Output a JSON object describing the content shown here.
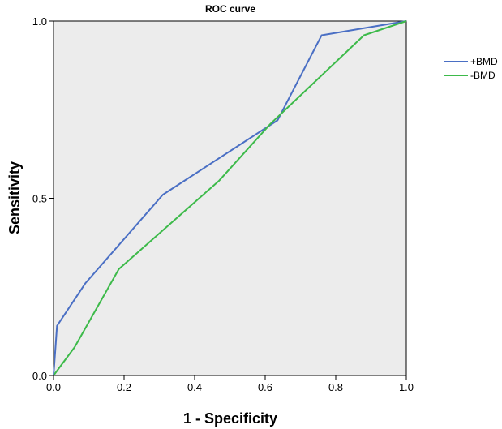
{
  "chart_data": {
    "type": "line",
    "title": "ROC curve",
    "xlabel": "1 - Specificity",
    "ylabel": "Sensitivity",
    "xlim": [
      0,
      1
    ],
    "ylim": [
      0,
      1
    ],
    "x_ticks": [
      "0.0",
      "0.2",
      "0.4",
      "0.6",
      "0.8",
      "1.0"
    ],
    "y_ticks": [
      "0.0",
      "0.5",
      "1.0"
    ],
    "grid": false,
    "legend_position": "top-right",
    "background": "#ececec",
    "series": [
      {
        "name": "+BMD",
        "color": "#4a6fc4",
        "x": [
          0.0,
          0.01,
          0.09,
          0.31,
          0.635,
          0.76,
          1.0
        ],
        "y": [
          0.0,
          0.14,
          0.26,
          0.51,
          0.72,
          0.96,
          1.0
        ]
      },
      {
        "name": "-BMD",
        "color": "#3dba4a",
        "x": [
          0.0,
          0.06,
          0.185,
          0.47,
          0.615,
          0.88,
          1.0
        ],
        "y": [
          0.0,
          0.08,
          0.3,
          0.55,
          0.71,
          0.96,
          1.0
        ]
      }
    ]
  }
}
